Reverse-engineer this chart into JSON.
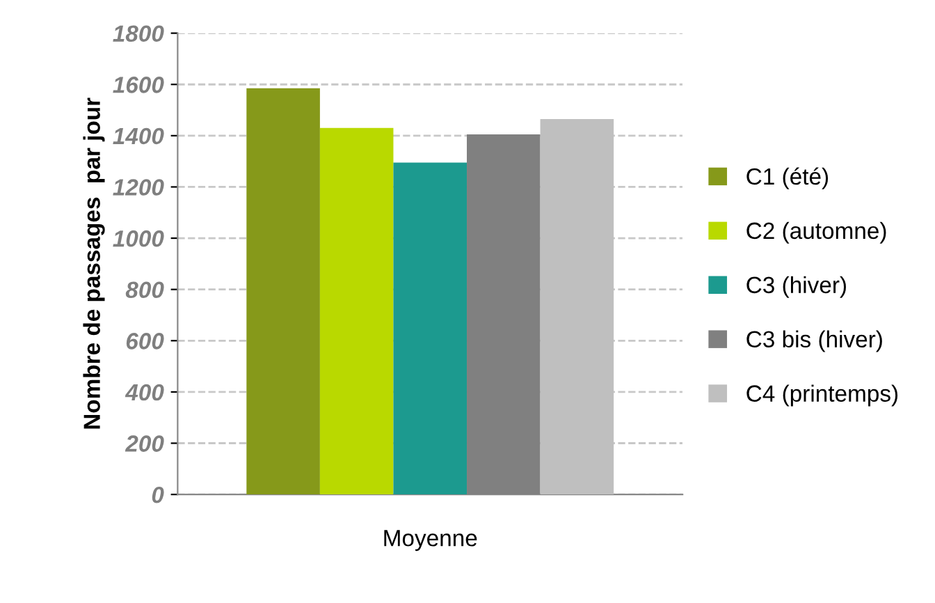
{
  "chart_data": {
    "type": "bar",
    "ylabel": "Nombre de passages  par jour",
    "categories": [
      "Moyenne"
    ],
    "series": [
      {
        "name": "C1 (été)",
        "color": "#86991a",
        "values": [
          1585
        ]
      },
      {
        "name": "C2 (automne)",
        "color": "#b9d900",
        "values": [
          1430
        ]
      },
      {
        "name": "C3 (hiver)",
        "color": "#1c9a8f",
        "values": [
          1295
        ]
      },
      {
        "name": "C3 bis (hiver)",
        "color": "#808080",
        "values": [
          1405
        ]
      },
      {
        "name": "C4 (printemps)",
        "color": "#bfbfbf",
        "values": [
          1465
        ]
      }
    ],
    "ylim": [
      0,
      1800
    ],
    "yticks": [
      0,
      200,
      400,
      600,
      800,
      1000,
      1200,
      1400,
      1600,
      1800
    ],
    "grid": "y",
    "legend": "right"
  }
}
